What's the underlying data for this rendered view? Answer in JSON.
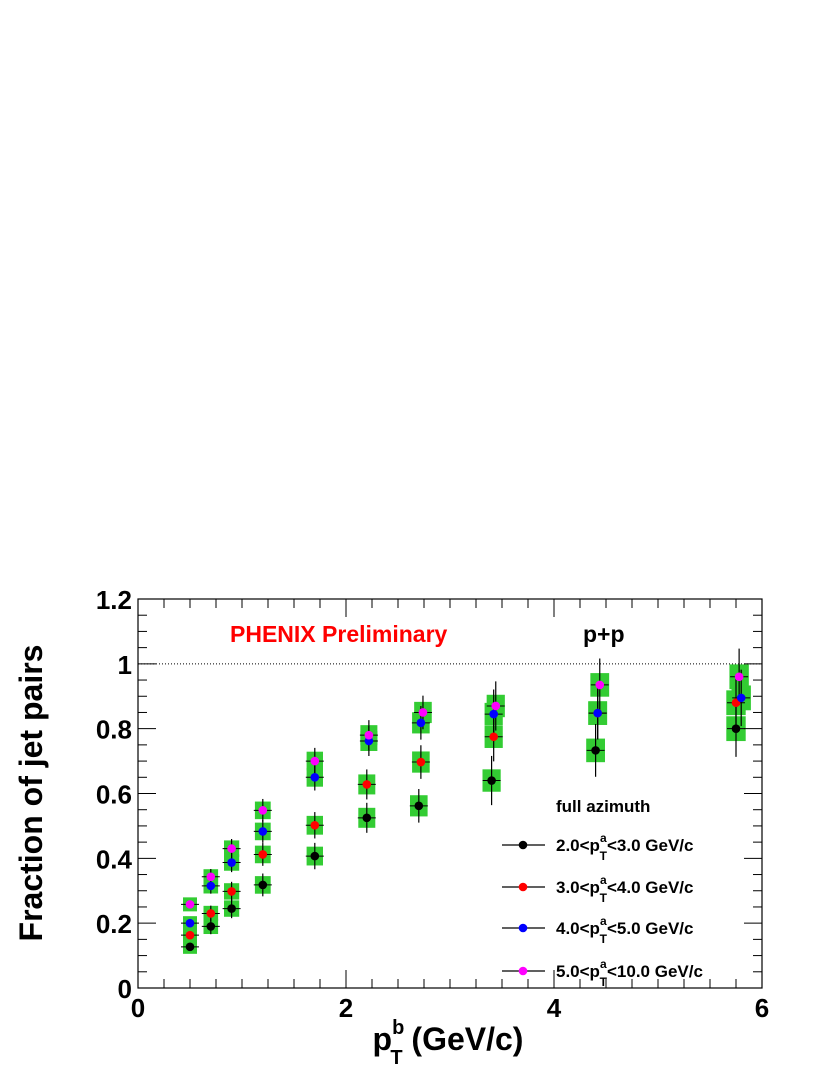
{
  "chart_data": {
    "type": "scatter",
    "title": "",
    "annotations": {
      "preliminary": "PHENIX Preliminary",
      "system": "p+p",
      "legend_header": "full azimuth"
    },
    "ylabel": "Fraction of jet pairs",
    "xlabel": {
      "main": "p",
      "sup": "b",
      "sub": "T",
      "suffix": " (GeV/c)"
    },
    "xlim": [
      0,
      6
    ],
    "ylim": [
      0,
      1.2
    ],
    "xticks": [
      "0",
      "2",
      "4",
      "6"
    ],
    "yticks": [
      "0",
      "0.2",
      "0.4",
      "0.6",
      "0.8",
      "1",
      "1.2"
    ],
    "reference_line": 1.0,
    "grid": false,
    "legend_position": "bottom-right",
    "series": [
      {
        "name": "2.0<p_T^a<3.0 GeV/c",
        "label": {
          "pre": "2.0<p",
          "sup": "a",
          "sub": "T",
          "post": "<3.0 GeV/c"
        },
        "color": "#000000",
        "x": [
          0.5,
          0.7,
          0.9,
          1.2,
          1.7,
          2.2,
          2.7,
          3.4,
          4.4,
          5.75
        ],
        "y": [
          0.127,
          0.19,
          0.245,
          0.318,
          0.407,
          0.525,
          0.562,
          0.64,
          0.733,
          0.8
        ]
      },
      {
        "name": "3.0<p_T^a<4.0 GeV/c",
        "label": {
          "pre": "3.0<p",
          "sup": "a",
          "sub": "T",
          "post": "<4.0 GeV/c"
        },
        "color": "#ff0000",
        "x": [
          0.5,
          0.7,
          0.9,
          1.2,
          1.7,
          2.2,
          2.72,
          3.42,
          4.42,
          5.75
        ],
        "y": [
          0.163,
          0.23,
          0.298,
          0.412,
          0.502,
          0.628,
          0.697,
          0.775,
          0.848,
          0.88
        ]
      },
      {
        "name": "4.0<p_T^a<5.0 GeV/c",
        "label": {
          "pre": "4.0<p",
          "sup": "a",
          "sub": "T",
          "post": "<5.0 GeV/c"
        },
        "color": "#0000ff",
        "x": [
          0.5,
          0.7,
          0.9,
          1.2,
          1.7,
          2.22,
          2.72,
          3.42,
          4.42,
          5.8
        ],
        "y": [
          0.2,
          0.315,
          0.387,
          0.483,
          0.65,
          0.762,
          0.818,
          0.845,
          0.848,
          0.895
        ]
      },
      {
        "name": "5.0<p_T^a<10.0 GeV/c",
        "label": {
          "pre": "5.0<p",
          "sup": "a",
          "sub": "T",
          "post": "<10.0 GeV/c"
        },
        "color": "#ff00ff",
        "x": [
          0.5,
          0.7,
          0.9,
          1.2,
          1.7,
          2.22,
          2.74,
          3.44,
          4.44,
          5.78
        ],
        "y": [
          0.258,
          0.343,
          0.43,
          0.548,
          0.7,
          0.78,
          0.85,
          0.87,
          0.935,
          0.96
        ]
      }
    ],
    "systematic_box_color": "#33cc33"
  }
}
